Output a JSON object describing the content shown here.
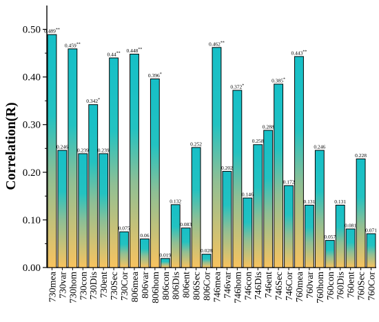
{
  "chart_data": {
    "type": "bar",
    "title": "",
    "xlabel": "",
    "ylabel": "Correlation(R)",
    "ylim": [
      0,
      0.55
    ],
    "yticks": [
      "0.00",
      "0.10",
      "0.20",
      "0.30",
      "0.40",
      "0.50"
    ],
    "grid": false,
    "legend": "none",
    "colors": {
      "bar_top": "#16bfc7",
      "bar_mid": "#7fbf9a",
      "bar_bottom": "#f8c35f",
      "outline": "#000000"
    },
    "categories": [
      "730mea",
      "730var",
      "730hom",
      "730con",
      "730Dis",
      "730ent",
      "730Sec",
      "730Cor",
      "806mea",
      "806var",
      "806hom",
      "806con",
      "806Dis",
      "806ent",
      "806Sec",
      "806Cor",
      "746mea",
      "746var",
      "746hom",
      "746con",
      "746Dis",
      "746ent",
      "746Sec",
      "746Cor",
      "760mea",
      "760var",
      "760hom",
      "760con",
      "760Dis",
      "760ent",
      "760Sec",
      "760Cor"
    ],
    "values": [
      0.489,
      0.246,
      0.459,
      0.239,
      0.342,
      0.239,
      0.44,
      0.075,
      0.448,
      0.06,
      0.396,
      0.019,
      0.132,
      0.083,
      0.252,
      0.028,
      0.462,
      0.202,
      0.372,
      0.146,
      0.258,
      0.288,
      0.385,
      0.172,
      0.443,
      0.131,
      0.246,
      0.057,
      0.131,
      0.081,
      0.228,
      0.071
    ],
    "value_labels": [
      "0.489**",
      "0.246",
      "0.459**",
      "0.239",
      "0.342*",
      "0.239",
      "0.44**",
      "0.075",
      "0.448**",
      "0.06",
      "0.396*",
      "0.019",
      "0.132",
      "0.083",
      "0.252",
      "0.028",
      "0.462**",
      "0.202",
      "0.372*",
      "0.146",
      "0.258",
      "0.288",
      "0.385*",
      "0.172",
      "0.443**",
      "0.131",
      "0.246",
      "0.057",
      "0.131",
      "0.081",
      "0.228",
      "0.071"
    ]
  }
}
